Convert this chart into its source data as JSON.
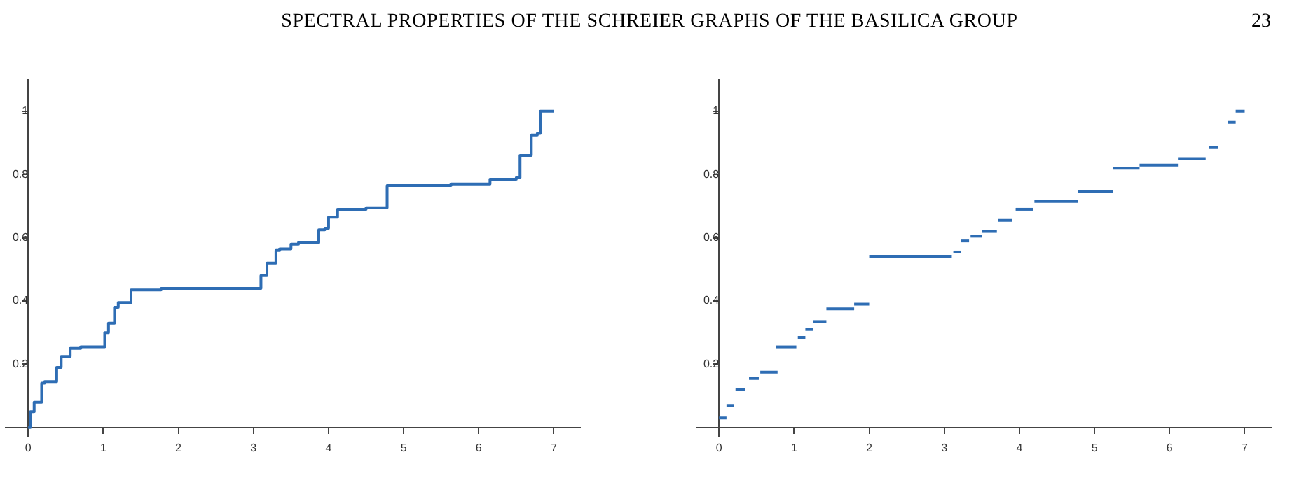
{
  "chart_data": [
    {
      "type": "step",
      "title": "SPECTRAL PROPERTIES OF THE SCHREIER GRAPHS OF THE BASILICA GROUP",
      "annotations": [
        "23"
      ],
      "color": "#2e6db4",
      "x": [
        0,
        0.03,
        0.08,
        0.18,
        0.22,
        0.38,
        0.44,
        0.56,
        0.7,
        1.02,
        1.07,
        1.15,
        1.2,
        1.37,
        1.77,
        3.1,
        3.18,
        3.3,
        3.35,
        3.5,
        3.6,
        3.87,
        3.95,
        4.0,
        4.12,
        4.5,
        4.78,
        5.63,
        6.15,
        6.5,
        6.55,
        6.7,
        6.78,
        6.82,
        7.0
      ],
      "values": [
        0,
        0.05,
        0.08,
        0.14,
        0.145,
        0.19,
        0.225,
        0.25,
        0.255,
        0.3,
        0.33,
        0.38,
        0.395,
        0.435,
        0.44,
        0.48,
        0.52,
        0.56,
        0.565,
        0.58,
        0.585,
        0.625,
        0.63,
        0.665,
        0.69,
        0.695,
        0.765,
        0.77,
        0.785,
        0.79,
        0.86,
        0.925,
        0.93,
        1.0,
        1.0
      ],
      "xlim": [
        -0.3,
        7.35
      ],
      "ylim": [
        -0.03,
        1.1
      ],
      "xticks": [
        0,
        1,
        2,
        3,
        4,
        5,
        6,
        7
      ],
      "yticks": [
        0.2,
        0.4,
        0.6,
        0.8,
        1
      ],
      "grid": false,
      "legend": false
    },
    {
      "type": "step",
      "series": [
        {
          "color": "#2e6db4",
          "x": [
            0,
            0.1
          ],
          "values": [
            0.03,
            0.03
          ]
        },
        {
          "color": "#2e6db4",
          "x": [
            0.1,
            0.2
          ],
          "values": [
            0.07,
            0.07
          ]
        },
        {
          "color": "#2e6db4",
          "x": [
            0.22,
            0.35
          ],
          "values": [
            0.12,
            0.12
          ]
        },
        {
          "color": "#2e6db4",
          "x": [
            0.4,
            0.53
          ],
          "values": [
            0.155,
            0.155
          ]
        },
        {
          "color": "#2e6db4",
          "x": [
            0.55,
            0.78
          ],
          "values": [
            0.175,
            0.175
          ]
        },
        {
          "color": "#2e6db4",
          "x": [
            0.76,
            1.03
          ],
          "values": [
            0.255,
            0.255
          ]
        },
        {
          "color": "#2e6db4",
          "x": [
            1.05,
            1.15
          ],
          "values": [
            0.285,
            0.285
          ]
        },
        {
          "color": "#2e6db4",
          "x": [
            1.15,
            1.25
          ],
          "values": [
            0.31,
            0.31
          ]
        },
        {
          "color": "#2e6db4",
          "x": [
            1.25,
            1.43
          ],
          "values": [
            0.335,
            0.335
          ]
        },
        {
          "color": "#2e6db4",
          "x": [
            1.43,
            1.8
          ],
          "values": [
            0.375,
            0.375
          ]
        },
        {
          "color": "#2e6db4",
          "x": [
            1.8,
            2.0
          ],
          "values": [
            0.39,
            0.39
          ]
        },
        {
          "color": "#2e6db4",
          "x": [
            2.0,
            3.1
          ],
          "values": [
            0.54,
            0.54
          ]
        },
        {
          "color": "#2e6db4",
          "x": [
            3.12,
            3.22
          ],
          "values": [
            0.555,
            0.555
          ]
        },
        {
          "color": "#2e6db4",
          "x": [
            3.22,
            3.33
          ],
          "values": [
            0.59,
            0.59
          ]
        },
        {
          "color": "#2e6db4",
          "x": [
            3.35,
            3.5
          ],
          "values": [
            0.605,
            0.605
          ]
        },
        {
          "color": "#2e6db4",
          "x": [
            3.5,
            3.7
          ],
          "values": [
            0.62,
            0.62
          ]
        },
        {
          "color": "#2e6db4",
          "x": [
            3.72,
            3.9
          ],
          "values": [
            0.655,
            0.655
          ]
        },
        {
          "color": "#2e6db4",
          "x": [
            3.95,
            4.18
          ],
          "values": [
            0.69,
            0.69
          ]
        },
        {
          "color": "#2e6db4",
          "x": [
            4.2,
            4.78
          ],
          "values": [
            0.715,
            0.715
          ]
        },
        {
          "color": "#2e6db4",
          "x": [
            4.78,
            5.25
          ],
          "values": [
            0.745,
            0.745
          ]
        },
        {
          "color": "#2e6db4",
          "x": [
            5.25,
            5.6
          ],
          "values": [
            0.82,
            0.82
          ]
        },
        {
          "color": "#2e6db4",
          "x": [
            5.6,
            6.12
          ],
          "values": [
            0.83,
            0.83
          ]
        },
        {
          "color": "#2e6db4",
          "x": [
            6.12,
            6.48
          ],
          "values": [
            0.85,
            0.85
          ]
        },
        {
          "color": "#2e6db4",
          "x": [
            6.52,
            6.65
          ],
          "values": [
            0.885,
            0.885
          ]
        },
        {
          "color": "#2e6db4",
          "x": [
            6.78,
            6.88
          ],
          "values": [
            0.965,
            0.965
          ]
        },
        {
          "color": "#2e6db4",
          "x": [
            6.88,
            7.0
          ],
          "values": [
            1.0,
            1.0
          ]
        }
      ],
      "xlim": [
        -0.3,
        7.35
      ],
      "ylim": [
        -0.03,
        1.1
      ],
      "xticks": [
        0,
        1,
        2,
        3,
        4,
        5,
        6,
        7
      ],
      "yticks": [
        0.2,
        0.4,
        0.6,
        0.8,
        1
      ],
      "grid": false,
      "legend": false
    }
  ]
}
